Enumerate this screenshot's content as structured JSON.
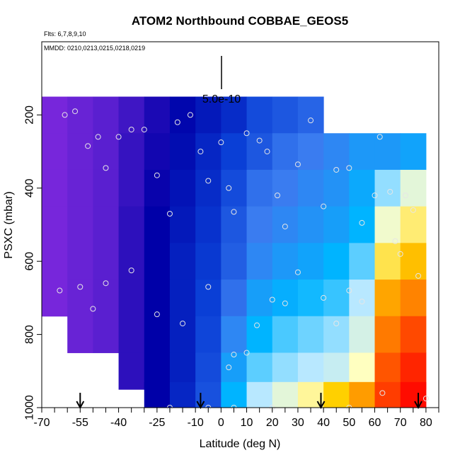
{
  "chart_data": {
    "type": "heatmap",
    "title": "ATOM2 Northbound COBBAE_GEOS5",
    "flights_label": "Flts: 6,7,8,9,10",
    "dates_label": "MMDD: 0210,0213,0215,0218,0219",
    "xlabel": "Latitude (deg N)",
    "ylabel": "PSXC (mbar)",
    "xlim": [
      -70,
      85
    ],
    "ylim": [
      1000,
      0
    ],
    "x_ticks": [
      -70,
      -55,
      -40,
      -25,
      -10,
      0,
      10,
      20,
      30,
      40,
      50,
      60,
      70,
      80
    ],
    "y_ticks": [
      200,
      400,
      600,
      800,
      1000
    ],
    "scale_bar_label": "5.0e-10",
    "colormap": [
      "#8a2be2",
      "#5a1fd0",
      "#0000a8",
      "#0a3fd6",
      "#3a7cf0",
      "#00b4ff",
      "#b8e8ff",
      "#ffffc0",
      "#ffd000",
      "#ff7a00",
      "#ff0000"
    ],
    "value_range": [
      0,
      1
    ],
    "cells": [
      {
        "lat": -65,
        "p": 200,
        "v": 0.04
      },
      {
        "lat": -55,
        "p": 200,
        "v": 0.07
      },
      {
        "lat": -45,
        "p": 200,
        "v": 0.1
      },
      {
        "lat": -35,
        "p": 200,
        "v": 0.13
      },
      {
        "lat": -25,
        "p": 200,
        "v": 0.17
      },
      {
        "lat": -15,
        "p": 200,
        "v": 0.21
      },
      {
        "lat": -5,
        "p": 200,
        "v": 0.24
      },
      {
        "lat": 5,
        "p": 200,
        "v": 0.27
      },
      {
        "lat": 15,
        "p": 200,
        "v": 0.32
      },
      {
        "lat": 25,
        "p": 200,
        "v": 0.34
      },
      {
        "lat": 35,
        "p": 200,
        "v": 0.36
      },
      {
        "lat": -65,
        "p": 300,
        "v": 0.04
      },
      {
        "lat": -55,
        "p": 300,
        "v": 0.07
      },
      {
        "lat": -45,
        "p": 300,
        "v": 0.1
      },
      {
        "lat": -35,
        "p": 300,
        "v": 0.14
      },
      {
        "lat": -25,
        "p": 300,
        "v": 0.18
      },
      {
        "lat": -15,
        "p": 300,
        "v": 0.22
      },
      {
        "lat": -5,
        "p": 300,
        "v": 0.26
      },
      {
        "lat": 5,
        "p": 300,
        "v": 0.3
      },
      {
        "lat": 15,
        "p": 300,
        "v": 0.34
      },
      {
        "lat": 25,
        "p": 300,
        "v": 0.38
      },
      {
        "lat": 35,
        "p": 300,
        "v": 0.4
      },
      {
        "lat": 45,
        "p": 300,
        "v": 0.42
      },
      {
        "lat": 55,
        "p": 300,
        "v": 0.45
      },
      {
        "lat": 65,
        "p": 300,
        "v": 0.45
      },
      {
        "lat": 75,
        "p": 300,
        "v": 0.47
      },
      {
        "lat": -65,
        "p": 400,
        "v": 0.04
      },
      {
        "lat": -55,
        "p": 400,
        "v": 0.07
      },
      {
        "lat": -45,
        "p": 400,
        "v": 0.1
      },
      {
        "lat": -35,
        "p": 400,
        "v": 0.14
      },
      {
        "lat": -25,
        "p": 400,
        "v": 0.19
      },
      {
        "lat": -15,
        "p": 400,
        "v": 0.23
      },
      {
        "lat": -5,
        "p": 400,
        "v": 0.27
      },
      {
        "lat": 5,
        "p": 400,
        "v": 0.32
      },
      {
        "lat": 15,
        "p": 400,
        "v": 0.38
      },
      {
        "lat": 25,
        "p": 400,
        "v": 0.4
      },
      {
        "lat": 35,
        "p": 400,
        "v": 0.42
      },
      {
        "lat": 45,
        "p": 400,
        "v": 0.44
      },
      {
        "lat": 55,
        "p": 400,
        "v": 0.48
      },
      {
        "lat": 65,
        "p": 400,
        "v": 0.58
      },
      {
        "lat": 75,
        "p": 400,
        "v": 0.66
      },
      {
        "lat": -65,
        "p": 500,
        "v": 0.04
      },
      {
        "lat": -55,
        "p": 500,
        "v": 0.07
      },
      {
        "lat": -45,
        "p": 500,
        "v": 0.1
      },
      {
        "lat": -35,
        "p": 500,
        "v": 0.15
      },
      {
        "lat": -25,
        "p": 500,
        "v": 0.2
      },
      {
        "lat": -15,
        "p": 500,
        "v": 0.24
      },
      {
        "lat": -5,
        "p": 500,
        "v": 0.28
      },
      {
        "lat": 5,
        "p": 500,
        "v": 0.34
      },
      {
        "lat": 15,
        "p": 500,
        "v": 0.4
      },
      {
        "lat": 25,
        "p": 500,
        "v": 0.42
      },
      {
        "lat": 35,
        "p": 500,
        "v": 0.44
      },
      {
        "lat": 45,
        "p": 500,
        "v": 0.46
      },
      {
        "lat": 55,
        "p": 500,
        "v": 0.5
      },
      {
        "lat": 65,
        "p": 500,
        "v": 0.68
      },
      {
        "lat": 75,
        "p": 500,
        "v": 0.74
      },
      {
        "lat": -65,
        "p": 600,
        "v": 0.04
      },
      {
        "lat": -55,
        "p": 600,
        "v": 0.07
      },
      {
        "lat": -45,
        "p": 600,
        "v": 0.1
      },
      {
        "lat": -35,
        "p": 600,
        "v": 0.15
      },
      {
        "lat": -25,
        "p": 600,
        "v": 0.2
      },
      {
        "lat": -15,
        "p": 600,
        "v": 0.25
      },
      {
        "lat": -5,
        "p": 600,
        "v": 0.29
      },
      {
        "lat": 5,
        "p": 600,
        "v": 0.35
      },
      {
        "lat": 15,
        "p": 600,
        "v": 0.42
      },
      {
        "lat": 25,
        "p": 600,
        "v": 0.45
      },
      {
        "lat": 35,
        "p": 600,
        "v": 0.47
      },
      {
        "lat": 45,
        "p": 600,
        "v": 0.5
      },
      {
        "lat": 55,
        "p": 600,
        "v": 0.55
      },
      {
        "lat": 65,
        "p": 600,
        "v": 0.76
      },
      {
        "lat": 75,
        "p": 600,
        "v": 0.82
      },
      {
        "lat": -65,
        "p": 700,
        "v": 0.04
      },
      {
        "lat": -55,
        "p": 700,
        "v": 0.07
      },
      {
        "lat": -45,
        "p": 700,
        "v": 0.1
      },
      {
        "lat": -35,
        "p": 700,
        "v": 0.15
      },
      {
        "lat": -25,
        "p": 700,
        "v": 0.2
      },
      {
        "lat": -15,
        "p": 700,
        "v": 0.25
      },
      {
        "lat": -5,
        "p": 700,
        "v": 0.3
      },
      {
        "lat": 5,
        "p": 700,
        "v": 0.38
      },
      {
        "lat": 15,
        "p": 700,
        "v": 0.46
      },
      {
        "lat": 25,
        "p": 700,
        "v": 0.49
      },
      {
        "lat": 35,
        "p": 700,
        "v": 0.51
      },
      {
        "lat": 45,
        "p": 700,
        "v": 0.53
      },
      {
        "lat": 55,
        "p": 700,
        "v": 0.6
      },
      {
        "lat": 65,
        "p": 700,
        "v": 0.85
      },
      {
        "lat": 75,
        "p": 700,
        "v": 0.89
      },
      {
        "lat": -55,
        "p": 800,
        "v": 0.07
      },
      {
        "lat": -45,
        "p": 800,
        "v": 0.1
      },
      {
        "lat": -35,
        "p": 800,
        "v": 0.15
      },
      {
        "lat": -25,
        "p": 800,
        "v": 0.2
      },
      {
        "lat": -15,
        "p": 800,
        "v": 0.25
      },
      {
        "lat": -5,
        "p": 800,
        "v": 0.31
      },
      {
        "lat": 5,
        "p": 800,
        "v": 0.42
      },
      {
        "lat": 15,
        "p": 800,
        "v": 0.5
      },
      {
        "lat": 25,
        "p": 800,
        "v": 0.54
      },
      {
        "lat": 35,
        "p": 800,
        "v": 0.56
      },
      {
        "lat": 45,
        "p": 800,
        "v": 0.58
      },
      {
        "lat": 55,
        "p": 800,
        "v": 0.64
      },
      {
        "lat": 65,
        "p": 800,
        "v": 0.9
      },
      {
        "lat": 75,
        "p": 800,
        "v": 0.94
      },
      {
        "lat": -35,
        "p": 900,
        "v": 0.15
      },
      {
        "lat": -25,
        "p": 900,
        "v": 0.2
      },
      {
        "lat": -15,
        "p": 900,
        "v": 0.25
      },
      {
        "lat": -5,
        "p": 900,
        "v": 0.32
      },
      {
        "lat": 5,
        "p": 900,
        "v": 0.46
      },
      {
        "lat": 15,
        "p": 900,
        "v": 0.55
      },
      {
        "lat": 25,
        "p": 900,
        "v": 0.58
      },
      {
        "lat": 35,
        "p": 900,
        "v": 0.6
      },
      {
        "lat": 45,
        "p": 900,
        "v": 0.62
      },
      {
        "lat": 55,
        "p": 900,
        "v": 0.7
      },
      {
        "lat": 65,
        "p": 900,
        "v": 0.93
      },
      {
        "lat": 75,
        "p": 900,
        "v": 0.97
      },
      {
        "lat": -25,
        "p": 980,
        "v": 0.2
      },
      {
        "lat": -15,
        "p": 980,
        "v": 0.26
      },
      {
        "lat": -5,
        "p": 980,
        "v": 0.33
      },
      {
        "lat": 5,
        "p": 980,
        "v": 0.5
      },
      {
        "lat": 15,
        "p": 980,
        "v": 0.6
      },
      {
        "lat": 25,
        "p": 980,
        "v": 0.66
      },
      {
        "lat": 35,
        "p": 980,
        "v": 0.72
      },
      {
        "lat": 45,
        "p": 980,
        "v": 0.8
      },
      {
        "lat": 55,
        "p": 980,
        "v": 0.86
      },
      {
        "lat": 65,
        "p": 980,
        "v": 0.95
      },
      {
        "lat": 75,
        "p": 980,
        "v": 0.99
      }
    ],
    "points": [
      {
        "lat": -61,
        "p": 200
      },
      {
        "lat": -57,
        "p": 190
      },
      {
        "lat": -52,
        "p": 285
      },
      {
        "lat": -48,
        "p": 260
      },
      {
        "lat": -45,
        "p": 345
      },
      {
        "lat": -40,
        "p": 260
      },
      {
        "lat": -35,
        "p": 240
      },
      {
        "lat": -30,
        "p": 240
      },
      {
        "lat": -25,
        "p": 365
      },
      {
        "lat": -20,
        "p": 470
      },
      {
        "lat": -17,
        "p": 220
      },
      {
        "lat": -12,
        "p": 200
      },
      {
        "lat": -8,
        "p": 300
      },
      {
        "lat": -5,
        "p": 380
      },
      {
        "lat": 0,
        "p": 275
      },
      {
        "lat": 3,
        "p": 400
      },
      {
        "lat": 5,
        "p": 465
      },
      {
        "lat": 10,
        "p": 250
      },
      {
        "lat": 15,
        "p": 270
      },
      {
        "lat": 18,
        "p": 300
      },
      {
        "lat": 22,
        "p": 420
      },
      {
        "lat": 25,
        "p": 505
      },
      {
        "lat": 30,
        "p": 335
      },
      {
        "lat": 35,
        "p": 215
      },
      {
        "lat": 40,
        "p": 450
      },
      {
        "lat": 45,
        "p": 350
      },
      {
        "lat": 50,
        "p": 345
      },
      {
        "lat": 55,
        "p": 495
      },
      {
        "lat": 60,
        "p": 420
      },
      {
        "lat": 62,
        "p": 260
      },
      {
        "lat": 66,
        "p": 410
      },
      {
        "lat": 70,
        "p": 580
      },
      {
        "lat": 75,
        "p": 460
      },
      {
        "lat": -63,
        "p": 680
      },
      {
        "lat": -55,
        "p": 670
      },
      {
        "lat": -50,
        "p": 730
      },
      {
        "lat": -45,
        "p": 660
      },
      {
        "lat": -35,
        "p": 625
      },
      {
        "lat": -25,
        "p": 745
      },
      {
        "lat": -15,
        "p": 770
      },
      {
        "lat": -5,
        "p": 670
      },
      {
        "lat": 3,
        "p": 890
      },
      {
        "lat": 5,
        "p": 855
      },
      {
        "lat": 10,
        "p": 850
      },
      {
        "lat": 14,
        "p": 775
      },
      {
        "lat": 20,
        "p": 705
      },
      {
        "lat": 25,
        "p": 715
      },
      {
        "lat": 30,
        "p": 630
      },
      {
        "lat": 40,
        "p": 700
      },
      {
        "lat": 45,
        "p": 770
      },
      {
        "lat": 50,
        "p": 680
      },
      {
        "lat": 55,
        "p": 710
      },
      {
        "lat": 63,
        "p": 960
      },
      {
        "lat": 68,
        "p": 545
      },
      {
        "lat": 72,
        "p": 420
      },
      {
        "lat": 77,
        "p": 640
      },
      {
        "lat": -20,
        "p": 1000
      },
      {
        "lat": -5,
        "p": 1000
      },
      {
        "lat": 5,
        "p": 1000
      },
      {
        "lat": 20,
        "p": 1000
      },
      {
        "lat": 50,
        "p": 1000
      },
      {
        "lat": 80,
        "p": 975
      }
    ],
    "arrows_lat": [
      -55,
      -8,
      39,
      77
    ]
  }
}
